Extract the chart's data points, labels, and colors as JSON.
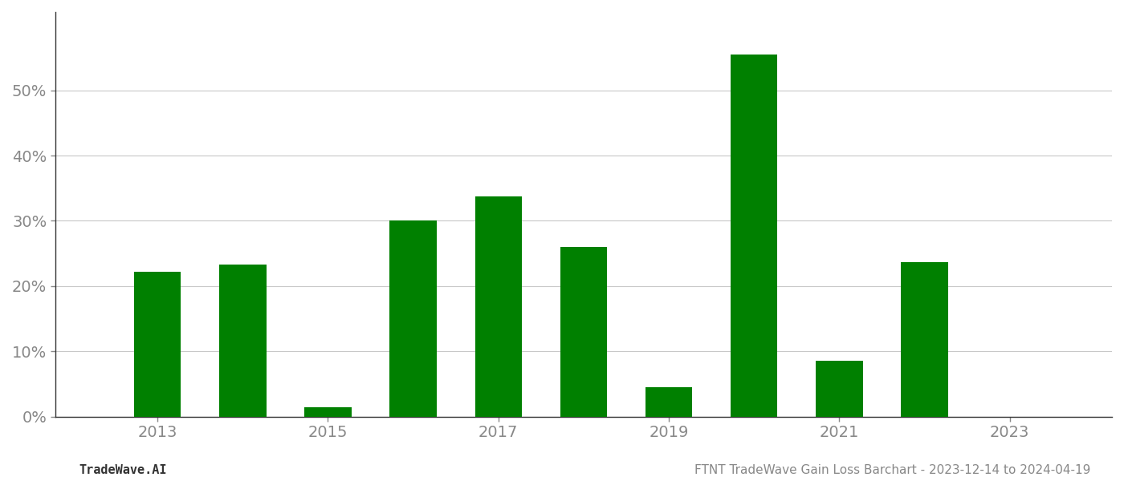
{
  "years": [
    2013,
    2014,
    2015,
    2016,
    2017,
    2018,
    2019,
    2020,
    2021,
    2022,
    2023
  ],
  "values": [
    0.222,
    0.233,
    0.014,
    0.3,
    0.338,
    0.26,
    0.045,
    0.555,
    0.085,
    0.237,
    null
  ],
  "bar_color": "#008000",
  "background_color": "#ffffff",
  "grid_color": "#c8c8c8",
  "axis_color": "#888888",
  "spine_color": "#333333",
  "title": "FTNT TradeWave Gain Loss Barchart - 2023-12-14 to 2024-04-19",
  "footer_left": "TradeWave.AI",
  "title_fontsize": 11,
  "footer_fontsize": 11,
  "tick_fontsize": 14,
  "ylim": [
    0,
    0.62
  ],
  "yticks": [
    0.0,
    0.1,
    0.2,
    0.3,
    0.4,
    0.5
  ],
  "bar_width": 0.55,
  "xlim_left": 2011.8,
  "xlim_right": 2024.2
}
